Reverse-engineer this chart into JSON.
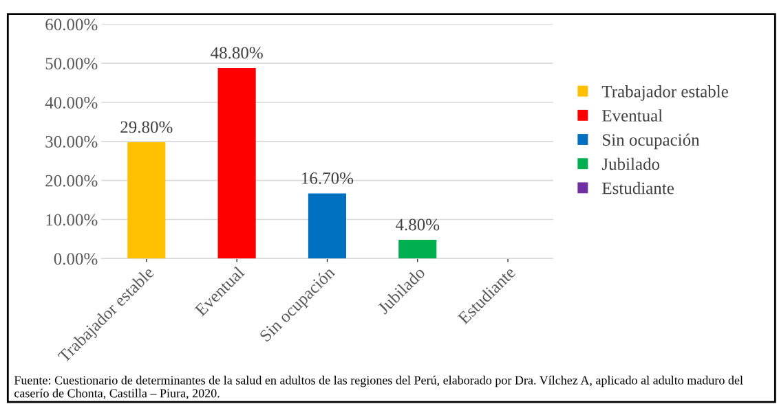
{
  "chart_data": {
    "type": "bar",
    "categories": [
      "Trabajador estable",
      "Eventual",
      "Sin ocupación",
      "Jubilado",
      "Estudiante"
    ],
    "series": [
      {
        "name": "Trabajador estable",
        "color": "#ffc000",
        "values": [
          29.8,
          null,
          null,
          null,
          null
        ],
        "value_labels": [
          "29.80%",
          null,
          null,
          null,
          null
        ]
      },
      {
        "name": "Eventual",
        "color": "#ff0000",
        "values": [
          null,
          48.8,
          null,
          null,
          null
        ],
        "value_labels": [
          null,
          "48.80%",
          null,
          null,
          null
        ]
      },
      {
        "name": "Sin ocupación",
        "color": "#0070c0",
        "values": [
          null,
          null,
          16.7,
          null,
          null
        ],
        "value_labels": [
          null,
          null,
          "16.70%",
          null,
          null
        ]
      },
      {
        "name": "Jubilado",
        "color": "#00b050",
        "values": [
          null,
          null,
          null,
          4.8,
          null
        ],
        "value_labels": [
          null,
          null,
          null,
          "4.80%",
          null
        ]
      },
      {
        "name": "Estudiante",
        "color": "#7030a0",
        "values": [
          null,
          null,
          null,
          null,
          null
        ]
      }
    ],
    "ylim": [
      0,
      60
    ],
    "yticks": [
      {
        "value": 0,
        "label": "0.00%"
      },
      {
        "value": 10,
        "label": "10.00%"
      },
      {
        "value": 20,
        "label": "20.00%"
      },
      {
        "value": 30,
        "label": "30.00%"
      },
      {
        "value": 40,
        "label": "40.00%"
      },
      {
        "value": 50,
        "label": "50.00%"
      },
      {
        "value": 60,
        "label": "60.00%"
      }
    ],
    "grid": "y",
    "legend": "right",
    "annotations": [
      "Fuente: Cuestionario de determinantes de la salud en adultos de las regiones del Perú, elaborado por Dra. Vílchez A, aplicado al adulto maduro del caserío de Chonta, Castilla – Piura, 2020."
    ]
  }
}
